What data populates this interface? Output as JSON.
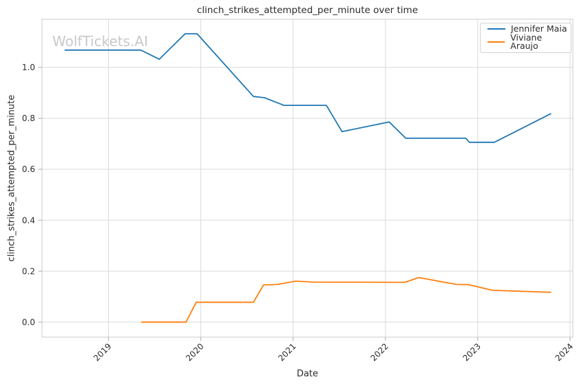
{
  "chart_data": {
    "type": "line",
    "title": "clinch_strikes_attempted_per_minute over time",
    "xlabel": "Date",
    "ylabel": "clinch_strikes_attempted_per_minute",
    "watermark": "WolfTickets.AI",
    "grid": true,
    "legend_position": "upper right",
    "xlim": [
      2018.28,
      2024.03
    ],
    "ylim": [
      -0.059,
      1.189
    ],
    "x_ticks": [
      {
        "value": 2019,
        "label": "2019"
      },
      {
        "value": 2020,
        "label": "2020"
      },
      {
        "value": 2021,
        "label": "2021"
      },
      {
        "value": 2022,
        "label": "2022"
      },
      {
        "value": 2023,
        "label": "2023"
      },
      {
        "value": 2024,
        "label": "2024"
      }
    ],
    "y_ticks": [
      {
        "value": 0.0,
        "label": "0.0"
      },
      {
        "value": 0.2,
        "label": "0.2"
      },
      {
        "value": 0.4,
        "label": "0.4"
      },
      {
        "value": 0.6,
        "label": "0.6"
      },
      {
        "value": 0.8,
        "label": "0.8"
      },
      {
        "value": 1.0,
        "label": "1.0"
      }
    ],
    "series": [
      {
        "name": "Jennifer Maia",
        "color": "#1f77b4",
        "x": [
          2018.53,
          2019.35,
          2019.55,
          2019.83,
          2019.96,
          2020.57,
          2020.69,
          2020.9,
          2021.36,
          2021.53,
          2022.04,
          2022.22,
          2022.87,
          2022.91,
          2023.18,
          2023.79
        ],
        "y": [
          1.068,
          1.068,
          1.032,
          1.132,
          1.132,
          0.886,
          0.881,
          0.851,
          0.851,
          0.748,
          0.786,
          0.722,
          0.722,
          0.706,
          0.706,
          0.818
        ]
      },
      {
        "name": "Viviane Araujo",
        "color": "#ff7f0e",
        "x": [
          2019.36,
          2019.84,
          2019.95,
          2020.57,
          2020.68,
          2020.83,
          2021.03,
          2021.22,
          2022.21,
          2022.36,
          2022.77,
          2022.9,
          2023.16,
          2023.79
        ],
        "y": [
          0.0,
          0.0,
          0.078,
          0.078,
          0.146,
          0.148,
          0.161,
          0.157,
          0.156,
          0.175,
          0.148,
          0.147,
          0.125,
          0.117
        ]
      }
    ],
    "style": {
      "grid_color": "#d9d9d9",
      "spine_color": "#cbcbcb",
      "tick_color": "#aaaaaa",
      "text_color": "#2b2b2b"
    }
  }
}
